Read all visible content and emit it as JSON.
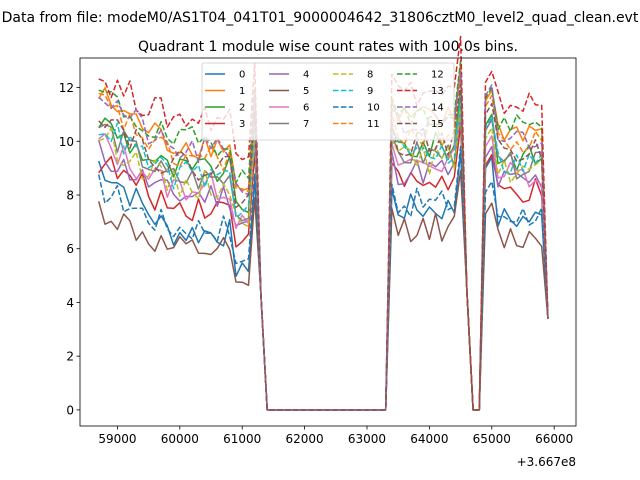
{
  "chart_data": {
    "type": "line",
    "suptitle": "Data from file: modeM0/AS1T04_041T01_9000004642_31806cztM0_level2_quad_clean.evt",
    "title": "Quadrant 1 module wise count rates with 100.0s bins.",
    "xlabel": "",
    "ylabel": "",
    "x_offset_label": "+3.667e8",
    "xlim": [
      58400,
      66350
    ],
    "ylim": [
      -0.6,
      13.1
    ],
    "xticks": [
      59000,
      60000,
      61000,
      62000,
      63000,
      64000,
      65000,
      66000
    ],
    "xtick_labels": [
      "59000",
      "60000",
      "61000",
      "62000",
      "63000",
      "64000",
      "65000",
      "66000"
    ],
    "yticks": [
      0,
      2,
      4,
      6,
      8,
      10,
      12
    ],
    "ytick_labels": [
      "0",
      "2",
      "4",
      "6",
      "8",
      "10",
      "12"
    ],
    "legend_position": "upper center",
    "legend_columns": 4,
    "x_segments": {
      "seg1": {
        "start": 58700,
        "end": 61200
      },
      "seg2": {
        "start": 63400,
        "end": 64500
      },
      "seg3": {
        "start": 64900,
        "end": 65800
      },
      "zero_gaps": [
        [
          61300,
          63300
        ],
        [
          64700,
          64800
        ]
      ],
      "edge_points": [
        61300,
        63300,
        64600,
        64800,
        65900
      ]
    },
    "series": [
      {
        "name": "0",
        "color": "#1f77b4",
        "dash": "solid",
        "level": 6.6,
        "drop": 5.2,
        "start": 9.2
      },
      {
        "name": "1",
        "color": "#ff7f0e",
        "dash": "solid",
        "level": 9.9,
        "drop": 8.4,
        "start": 11.7
      },
      {
        "name": "2",
        "color": "#2ca02c",
        "dash": "solid",
        "level": 8.9,
        "drop": 7.6,
        "start": 10.8
      },
      {
        "name": "3",
        "color": "#d62728",
        "dash": "solid",
        "level": 7.6,
        "drop": 6.3,
        "start": 9.3
      },
      {
        "name": "4",
        "color": "#9467bd",
        "dash": "solid",
        "level": 8.0,
        "drop": 6.9,
        "start": 9.6
      },
      {
        "name": "5",
        "color": "#8c564b",
        "dash": "solid",
        "level": 5.9,
        "drop": 4.6,
        "start": 7.5
      },
      {
        "name": "6",
        "color": "#e377c2",
        "dash": "solid",
        "level": 8.3,
        "drop": 7.0,
        "start": 10.0
      },
      {
        "name": "7",
        "color": "#7f7f7f",
        "dash": "solid",
        "level": 8.6,
        "drop": 7.3,
        "start": 10.6
      },
      {
        "name": "8",
        "color": "#bcbd22",
        "dash": "dashed",
        "level": 8.4,
        "drop": 7.1,
        "start": 10.3
      },
      {
        "name": "9",
        "color": "#17becf",
        "dash": "dashed",
        "level": 8.7,
        "drop": 7.4,
        "start": 10.7
      },
      {
        "name": "10",
        "color": "#1f77b4",
        "dash": "dashed",
        "level": 6.8,
        "drop": 5.5,
        "start": 8.3
      },
      {
        "name": "11",
        "color": "#ff7f0e",
        "dash": "dashed",
        "level": 9.4,
        "drop": 8.1,
        "start": 11.5
      },
      {
        "name": "12",
        "color": "#2ca02c",
        "dash": "dashed",
        "level": 10.0,
        "drop": 8.7,
        "start": 11.8
      },
      {
        "name": "13",
        "color": "#d62728",
        "dash": "dashed",
        "level": 10.9,
        "drop": 9.6,
        "start": 12.4
      },
      {
        "name": "14",
        "color": "#9467bd",
        "dash": "dashed",
        "level": 9.6,
        "drop": 8.3,
        "start": 11.9
      },
      {
        "name": "15",
        "color": "#8c564b",
        "dash": "dashed",
        "level": 9.1,
        "drop": 7.8,
        "start": 11.2
      }
    ]
  }
}
